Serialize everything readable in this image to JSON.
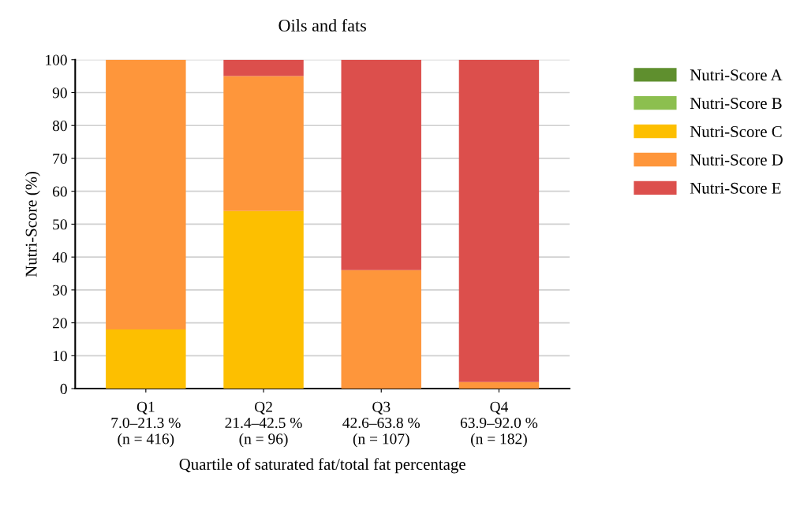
{
  "chart_data": {
    "type": "bar",
    "stacked": true,
    "title": "Oils and fats",
    "xlabel": "Quartile of saturated fat/total fat percentage",
    "ylabel": "Nutri-Score (%)",
    "categories": [
      "Q1\n7.0–21.3 %\n(n = 416)",
      "Q2\n21.4–42.5 %\n(n = 96)",
      "Q3\n42.6–63.8 %\n(n = 107)",
      "Q4\n63.9–92.0 %\n(n = 182)"
    ],
    "series": [
      {
        "name": "Nutri-Score A",
        "color": "#5f8f2e",
        "values": [
          0,
          0,
          0,
          0
        ]
      },
      {
        "name": "Nutri-Score B",
        "color": "#8cbf4f",
        "values": [
          0,
          0,
          0,
          0
        ]
      },
      {
        "name": "Nutri-Score C",
        "color": "#fdbf00",
        "values": [
          18,
          54,
          0,
          0
        ]
      },
      {
        "name": "Nutri-Score D",
        "color": "#fe963b",
        "values": [
          82,
          41,
          36,
          2
        ]
      },
      {
        "name": "Nutri-Score E",
        "color": "#dc4f4c",
        "values": [
          0,
          5,
          64,
          98
        ]
      }
    ],
    "ylim": [
      0,
      100
    ],
    "yticks": [
      0,
      10,
      20,
      30,
      40,
      50,
      60,
      70,
      80,
      90,
      100
    ],
    "grid": "y",
    "legend": "top right"
  }
}
